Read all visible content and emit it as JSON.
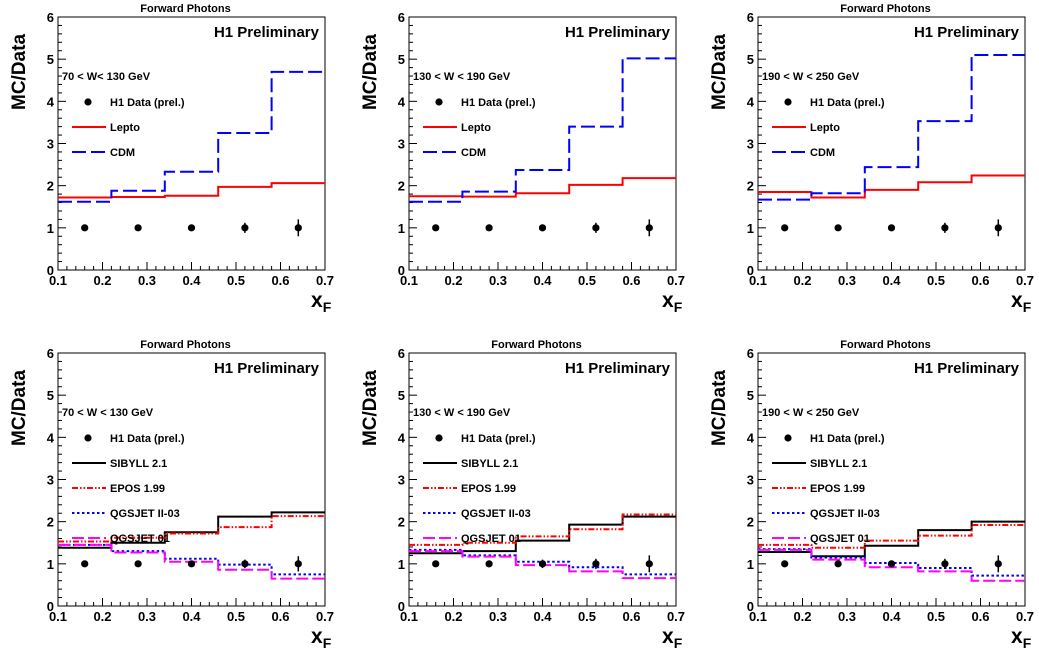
{
  "colors": {
    "lepto": "#ff0000",
    "cdm": "#0000ff",
    "sibyll": "#000000",
    "epos": "#ff0000",
    "qgsjet_ii": "#0000ff",
    "qgsjet_01": "#ff00ff",
    "data": "#000000"
  },
  "chart_data": [
    {
      "type": "line",
      "title": "Forward Photons",
      "annotation": "H1 Preliminary",
      "range_label": "70 < W< 130 GeV",
      "xlabel": "x",
      "xlabel_sub": "F",
      "ylabel": "MC/Data",
      "xlim": [
        0.1,
        0.7
      ],
      "ylim": [
        0,
        6
      ],
      "xticks": [
        "0.1",
        "0.2",
        "0.3",
        "0.4",
        "0.5",
        "0.6",
        "0.7"
      ],
      "yticks": [
        "0",
        "1",
        "2",
        "3",
        "4",
        "5",
        "6"
      ],
      "bin_edges": [
        0.1,
        0.22,
        0.34,
        0.46,
        0.58,
        0.7
      ],
      "data_points": {
        "name": "H1 Data (prel.)",
        "x": [
          0.16,
          0.28,
          0.4,
          0.52,
          0.64
        ],
        "y": [
          1,
          1,
          1,
          1,
          1
        ],
        "err": [
          0.05,
          0.05,
          0.07,
          0.12,
          0.2
        ]
      },
      "series": [
        {
          "name": "Lepto",
          "values": [
            1.72,
            1.73,
            1.76,
            1.97,
            2.06
          ],
          "style": "solid",
          "color_key": "lepto"
        },
        {
          "name": "CDM",
          "values": [
            1.62,
            1.88,
            2.33,
            3.25,
            4.7
          ],
          "style": "dashed",
          "color_key": "cdm"
        }
      ]
    },
    {
      "type": "line",
      "title": "",
      "annotation": "H1 Preliminary",
      "range_label": "130 < W < 190 GeV",
      "xlabel": "x",
      "xlabel_sub": "F",
      "ylabel": "MC/Data",
      "xlim": [
        0.1,
        0.7
      ],
      "ylim": [
        0,
        6
      ],
      "xticks": [
        "0.1",
        "0.2",
        "0.3",
        "0.4",
        "0.5",
        "0.6",
        "0.7"
      ],
      "yticks": [
        "0",
        "1",
        "2",
        "3",
        "4",
        "5",
        "6"
      ],
      "bin_edges": [
        0.1,
        0.22,
        0.34,
        0.46,
        0.58,
        0.7
      ],
      "data_points": {
        "name": "H1 Data (prel.)",
        "x": [
          0.16,
          0.28,
          0.4,
          0.52,
          0.64
        ],
        "y": [
          1,
          1,
          1,
          1,
          1
        ],
        "err": [
          0.05,
          0.06,
          0.08,
          0.12,
          0.2
        ]
      },
      "series": [
        {
          "name": "Lepto",
          "values": [
            1.75,
            1.74,
            1.82,
            2.02,
            2.18
          ],
          "style": "solid",
          "color_key": "lepto"
        },
        {
          "name": "CDM",
          "values": [
            1.62,
            1.86,
            2.37,
            3.4,
            5.02
          ],
          "style": "dashed",
          "color_key": "cdm"
        }
      ]
    },
    {
      "type": "line",
      "title": "Forward Photons",
      "annotation": "H1 Preliminary",
      "range_label": "190 < W < 250 GeV",
      "xlabel": "x",
      "xlabel_sub": "F",
      "ylabel": "MC/Data",
      "xlim": [
        0.1,
        0.7
      ],
      "ylim": [
        0,
        6
      ],
      "xticks": [
        "0.1",
        "0.2",
        "0.3",
        "0.4",
        "0.5",
        "0.6",
        "0.7"
      ],
      "yticks": [
        "0",
        "1",
        "2",
        "3",
        "4",
        "5",
        "6"
      ],
      "bin_edges": [
        0.1,
        0.22,
        0.34,
        0.46,
        0.58,
        0.7
      ],
      "data_points": {
        "name": "H1 Data (prel.)",
        "x": [
          0.16,
          0.28,
          0.4,
          0.52,
          0.64
        ],
        "y": [
          1,
          1,
          1,
          1,
          1
        ],
        "err": [
          0.05,
          0.06,
          0.08,
          0.12,
          0.2
        ]
      },
      "series": [
        {
          "name": "Lepto",
          "values": [
            1.85,
            1.72,
            1.9,
            2.08,
            2.24
          ],
          "style": "solid",
          "color_key": "lepto"
        },
        {
          "name": "CDM",
          "values": [
            1.67,
            1.82,
            2.44,
            3.53,
            5.1
          ],
          "style": "dashed",
          "color_key": "cdm"
        }
      ]
    },
    {
      "type": "line",
      "title": "Forward Photons",
      "annotation": "H1 Preliminary",
      "range_label": "70 < W < 130 GeV",
      "xlabel": "x",
      "xlabel_sub": "F",
      "ylabel": "MC/Data",
      "xlim": [
        0.1,
        0.7
      ],
      "ylim": [
        0,
        6
      ],
      "xticks": [
        "0.1",
        "0.2",
        "0.3",
        "0.4",
        "0.5",
        "0.6",
        "0.7"
      ],
      "yticks": [
        "0",
        "1",
        "2",
        "3",
        "4",
        "5",
        "6"
      ],
      "bin_edges": [
        0.1,
        0.22,
        0.34,
        0.46,
        0.58,
        0.7
      ],
      "data_points": {
        "name": "H1 Data (prel.)",
        "x": [
          0.16,
          0.28,
          0.4,
          0.52,
          0.64
        ],
        "y": [
          1,
          1,
          1,
          1,
          1
        ],
        "err": [
          0.05,
          0.05,
          0.07,
          0.1,
          0.18
        ]
      },
      "series": [
        {
          "name": "SIBYLL 2.1",
          "values": [
            1.38,
            1.5,
            1.75,
            2.12,
            2.22
          ],
          "style": "solid",
          "color_key": "sibyll"
        },
        {
          "name": "EPOS 1.99",
          "values": [
            1.53,
            1.62,
            1.72,
            1.87,
            2.13
          ],
          "style": "dashdot",
          "color_key": "epos"
        },
        {
          "name": "QGSJET II-03",
          "values": [
            1.45,
            1.3,
            1.12,
            0.98,
            0.75
          ],
          "style": "dotted",
          "color_key": "qgsjet_ii"
        },
        {
          "name": "QGSJET 01",
          "values": [
            1.45,
            1.27,
            1.05,
            0.86,
            0.65
          ],
          "style": "longdash",
          "color_key": "qgsjet_01"
        }
      ]
    },
    {
      "type": "line",
      "title": "Forward Photons",
      "annotation": "H1 Preliminary",
      "range_label": "130 < W < 190 GeV",
      "xlabel": "x",
      "xlabel_sub": "F",
      "ylabel": "MC/Data",
      "xlim": [
        0.1,
        0.7
      ],
      "ylim": [
        0,
        6
      ],
      "xticks": [
        "0.1",
        "0.2",
        "0.3",
        "0.4",
        "0.5",
        "0.6",
        "0.7"
      ],
      "yticks": [
        "0",
        "1",
        "2",
        "3",
        "4",
        "5",
        "6"
      ],
      "bin_edges": [
        0.1,
        0.22,
        0.34,
        0.46,
        0.58,
        0.7
      ],
      "data_points": {
        "name": "H1 Data (prel.)",
        "x": [
          0.16,
          0.28,
          0.4,
          0.52,
          0.64
        ],
        "y": [
          1,
          1,
          1,
          1,
          1
        ],
        "err": [
          0.06,
          0.08,
          0.1,
          0.12,
          0.2
        ]
      },
      "series": [
        {
          "name": "SIBYLL 2.1",
          "values": [
            1.25,
            1.3,
            1.55,
            1.93,
            2.12
          ],
          "style": "solid",
          "color_key": "sibyll"
        },
        {
          "name": "EPOS 1.99",
          "values": [
            1.45,
            1.5,
            1.65,
            1.82,
            2.17
          ],
          "style": "dashdot",
          "color_key": "epos"
        },
        {
          "name": "QGSJET II-03",
          "values": [
            1.33,
            1.2,
            1.05,
            0.92,
            0.75
          ],
          "style": "dotted",
          "color_key": "qgsjet_ii"
        },
        {
          "name": "QGSJET 01",
          "values": [
            1.3,
            1.17,
            0.97,
            0.82,
            0.66
          ],
          "style": "longdash",
          "color_key": "qgsjet_01"
        }
      ]
    },
    {
      "type": "line",
      "title": "Forward Photons",
      "annotation": "H1 Preliminary",
      "range_label": "190 < W < 250 GeV",
      "xlabel": "x",
      "xlabel_sub": "F",
      "ylabel": "MC/Data",
      "xlim": [
        0.1,
        0.7
      ],
      "ylim": [
        0,
        6
      ],
      "xticks": [
        "0.1",
        "0.2",
        "0.3",
        "0.4",
        "0.5",
        "0.6",
        "0.7"
      ],
      "yticks": [
        "0",
        "1",
        "2",
        "3",
        "4",
        "5",
        "6"
      ],
      "bin_edges": [
        0.1,
        0.22,
        0.34,
        0.46,
        0.58,
        0.7
      ],
      "data_points": {
        "name": "H1 Data (prel.)",
        "x": [
          0.16,
          0.28,
          0.4,
          0.52,
          0.64
        ],
        "y": [
          1,
          1,
          1,
          1,
          1
        ],
        "err": [
          0.05,
          0.06,
          0.08,
          0.12,
          0.2
        ]
      },
      "series": [
        {
          "name": "SIBYLL 2.1",
          "values": [
            1.28,
            1.18,
            1.43,
            1.8,
            2.0
          ],
          "style": "solid",
          "color_key": "sibyll"
        },
        {
          "name": "EPOS 1.99",
          "values": [
            1.45,
            1.38,
            1.55,
            1.67,
            1.92
          ],
          "style": "dashdot",
          "color_key": "epos"
        },
        {
          "name": "QGSJET II-03",
          "values": [
            1.35,
            1.15,
            1.02,
            0.9,
            0.72
          ],
          "style": "dotted",
          "color_key": "qgsjet_ii"
        },
        {
          "name": "QGSJET 01",
          "values": [
            1.33,
            1.1,
            0.92,
            0.82,
            0.6
          ],
          "style": "longdash",
          "color_key": "qgsjet_01"
        }
      ]
    }
  ]
}
